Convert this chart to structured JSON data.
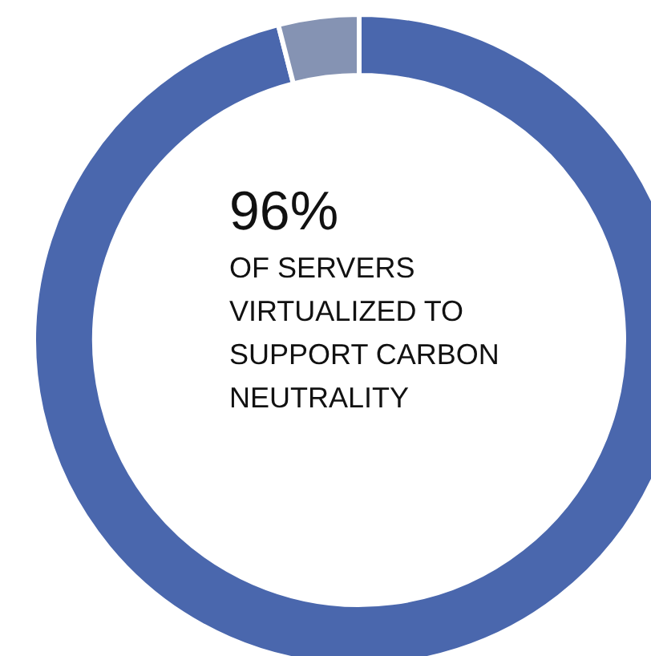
{
  "chart_data": {
    "type": "donut",
    "categories": [
      null,
      null
    ],
    "values": [
      96,
      4
    ],
    "colors": [
      "#4a67ad",
      "#8593b3"
    ],
    "value_labels": [
      "96%",
      null
    ],
    "annotations": [
      "OF SERVERS VIRTUALIZED TO SUPPORT CARBON NEUTRALITY"
    ],
    "legend": false
  }
}
